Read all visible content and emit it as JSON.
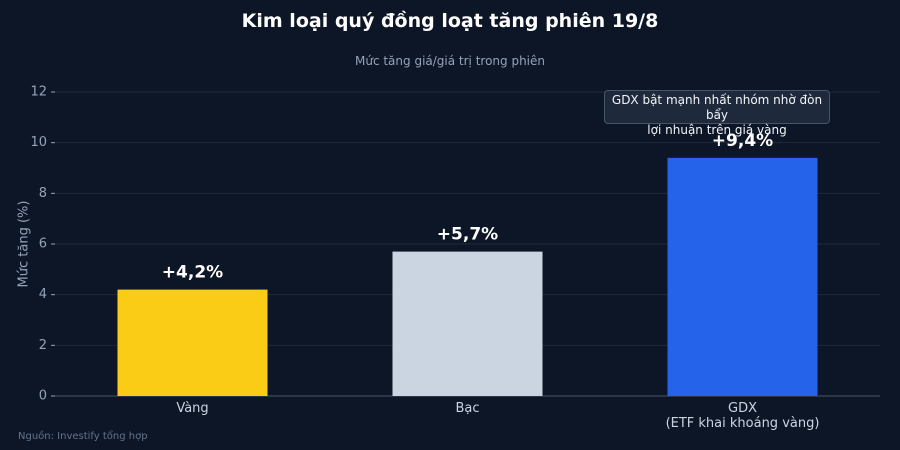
{
  "chart_data": {
    "type": "bar",
    "title": "Kim loại quý đồng loạt tăng phiên 19/8",
    "subtitle": "Mức tăng giá/giá trị trong phiên",
    "y_label": "Mức tăng (%)",
    "categories": [
      "Vàng",
      "Bạc",
      "GDX\n(ETF khai khoáng vàng)"
    ],
    "values": [
      4.2,
      5.7,
      9.4
    ],
    "value_labels": [
      "+4,2%",
      "+5,7%",
      "+9,4%"
    ],
    "colors": [
      "#facc15",
      "#cbd5e1",
      "#2563eb"
    ],
    "ylim": [
      0,
      12
    ],
    "yticks": [
      0,
      2,
      4,
      6,
      8,
      10,
      12
    ],
    "grid": true,
    "annotation": "GDX bật mạnh nhất nhóm nhờ đòn bẩy\nlợi nhuận trên giá vàng",
    "source": "Nguồn: Investify tổng hợp"
  }
}
